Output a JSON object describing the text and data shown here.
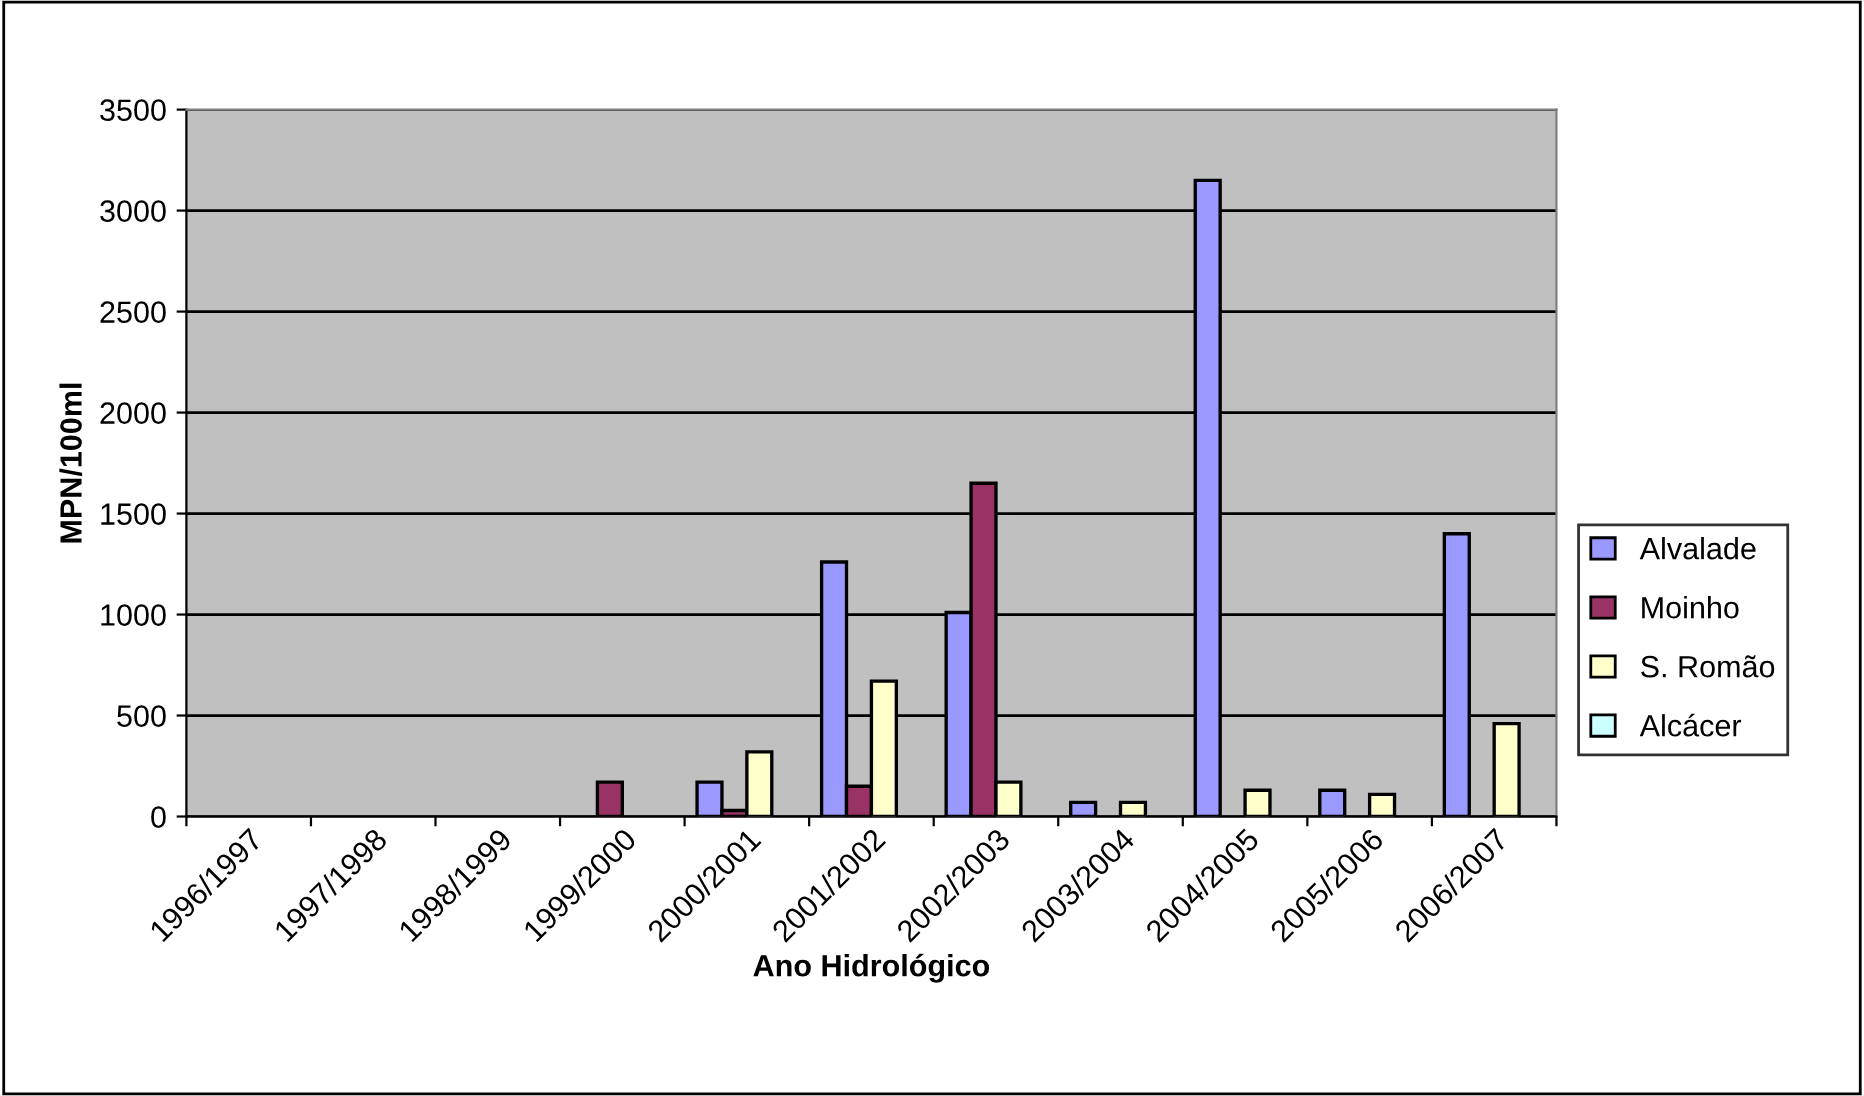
{
  "chart_data": {
    "type": "bar",
    "xlabel": "Ano Hidrológico",
    "ylabel": "MPN/100ml",
    "categories": [
      "1996/1997",
      "1997/1998",
      "1998/1999",
      "1999/2000",
      "2000/2001",
      "2001/2002",
      "2002/2003",
      "2003/2004",
      "2004/2005",
      "2005/2006",
      "2006/2007"
    ],
    "series": [
      {
        "name": "Alvalade",
        "color": "#9999ff",
        "values": [
          null,
          null,
          null,
          null,
          170,
          1260,
          1010,
          70,
          3150,
          130,
          1400
        ]
      },
      {
        "name": "Moinho",
        "color": "#993366",
        "values": [
          null,
          null,
          null,
          170,
          30,
          150,
          1650,
          null,
          null,
          null,
          null
        ]
      },
      {
        "name": "S. Romão",
        "color": "#ffffcc",
        "values": [
          null,
          null,
          null,
          null,
          320,
          670,
          170,
          70,
          130,
          110,
          460
        ]
      },
      {
        "name": "Alcácer",
        "color": "#ccffff",
        "values": [
          null,
          null,
          null,
          null,
          null,
          null,
          null,
          null,
          null,
          null,
          null
        ]
      }
    ],
    "ylim": [
      0,
      3500
    ],
    "yticks": [
      0,
      500,
      1000,
      1500,
      2000,
      2500,
      3000,
      3500
    ],
    "grid": "y",
    "legend": "right"
  }
}
